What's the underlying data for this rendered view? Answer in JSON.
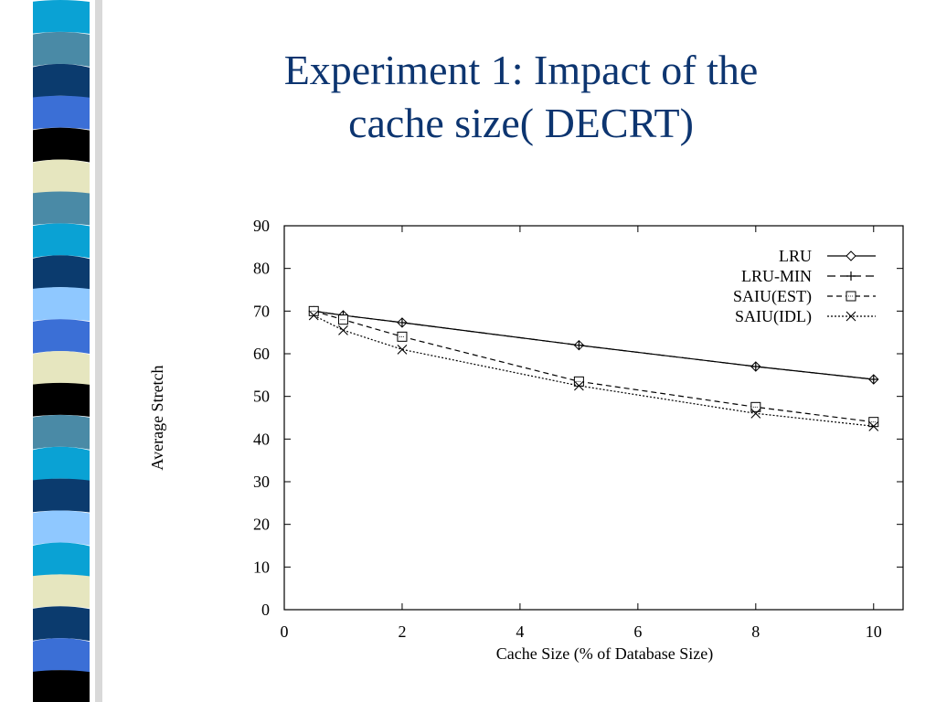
{
  "slide": {
    "title_line1": "Experiment 1: Impact of the",
    "title_line2": "cache size( DECRT)",
    "title_color": "#0d3570",
    "decoration_colors": [
      "#0aa2d4",
      "#4a8aa6",
      "#0b3b6e",
      "#3b6fd6",
      "#000000",
      "#e6e6bf",
      "#8fc8ff"
    ]
  },
  "chart_data": {
    "type": "line",
    "xlabel": "Cache Size (% of Database Size)",
    "ylabel": "Average Stretch",
    "xlim": [
      0,
      10.5
    ],
    "ylim": [
      0,
      90
    ],
    "xticks": [
      0,
      2,
      4,
      6,
      8,
      10
    ],
    "yticks": [
      0,
      10,
      20,
      30,
      40,
      50,
      60,
      70,
      80,
      90
    ],
    "grid": false,
    "legend_position": "top-right",
    "series": [
      {
        "name": "LRU",
        "marker": "diamond",
        "dash": "solid",
        "x": [
          0.5,
          1,
          2,
          5,
          8,
          10
        ],
        "y": [
          70,
          69,
          67.3,
          62,
          57,
          54
        ]
      },
      {
        "name": "LRU-MIN",
        "marker": "plus",
        "dash": "long-dash",
        "x": [
          0.5,
          1,
          2,
          5,
          8,
          10
        ],
        "y": [
          70,
          69,
          67.3,
          62,
          57,
          54
        ]
      },
      {
        "name": "SAIU(EST)",
        "marker": "square",
        "dash": "dash",
        "x": [
          0.5,
          1,
          2,
          5,
          8,
          10
        ],
        "y": [
          70,
          68,
          64,
          53.5,
          47.5,
          44
        ]
      },
      {
        "name": "SAIU(IDL)",
        "marker": "cross",
        "dash": "dot",
        "x": [
          0.5,
          1,
          2,
          5,
          8,
          10
        ],
        "y": [
          69,
          65.5,
          61,
          52.5,
          46,
          43
        ]
      }
    ]
  }
}
